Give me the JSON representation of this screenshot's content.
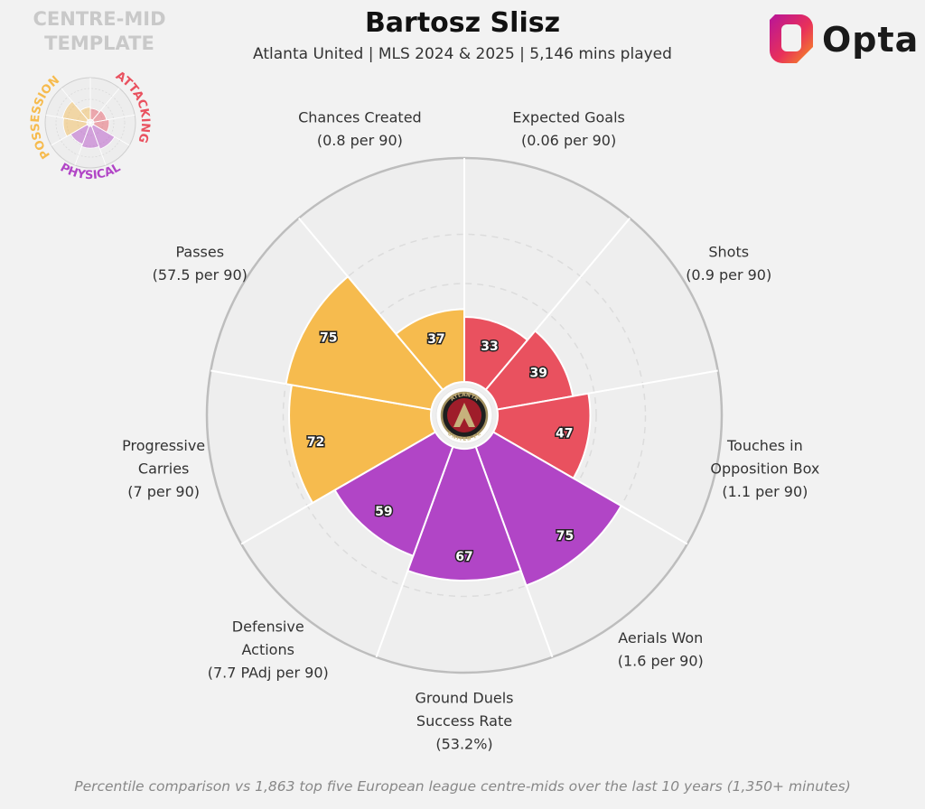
{
  "header": {
    "title": "Bartosz Slisz",
    "subtitle": "Atlanta United | MLS 2024 & 2025 | 5,146 mins played",
    "template_line1": "CENTRE-MID",
    "template_line2": "TEMPLATE",
    "brand": "Opta"
  },
  "legend": {
    "groups": [
      {
        "name": "POSSESSION",
        "color": "#f6bb4e"
      },
      {
        "name": "ATTACKING",
        "color": "#e9515f"
      },
      {
        "name": "PHYSICAL",
        "color": "#b145c6"
      }
    ]
  },
  "badge": {
    "text_top": "ATLANTA",
    "text_bottom": "UNITED FC"
  },
  "footnote": "Percentile comparison vs 1,863 top five European league centre-mids over the last 10 years (1,350+ minutes)",
  "chart_data": {
    "type": "radar",
    "rlim": [
      0,
      100
    ],
    "grid": true,
    "segments": [
      {
        "label": [
          "Expected Goals",
          "(0.06 per 90)"
        ],
        "value": 33,
        "group": "ATTACKING"
      },
      {
        "label": [
          "Shots",
          "(0.9 per 90)"
        ],
        "value": 39,
        "group": "ATTACKING"
      },
      {
        "label": [
          "Touches in",
          "Opposition Box",
          "(1.1 per 90)"
        ],
        "value": 47,
        "group": "ATTACKING"
      },
      {
        "label": [
          "Aerials Won",
          "(1.6 per 90)"
        ],
        "value": 75,
        "group": "PHYSICAL"
      },
      {
        "label": [
          "Ground Duels",
          "Success Rate",
          "(53.2%)"
        ],
        "value": 67,
        "group": "PHYSICAL"
      },
      {
        "label": [
          "Defensive",
          "Actions",
          "(7.7 PAdj per 90)"
        ],
        "value": 59,
        "group": "PHYSICAL"
      },
      {
        "label": [
          "Progressive",
          "Carries",
          "(7 per 90)"
        ],
        "value": 72,
        "group": "POSSESSION"
      },
      {
        "label": [
          "Passes",
          "(57.5 per 90)"
        ],
        "value": 75,
        "group": "POSSESSION"
      },
      {
        "label": [
          "Chances Created",
          "(0.8 per 90)"
        ],
        "value": 37,
        "group": "POSSESSION"
      }
    ]
  }
}
